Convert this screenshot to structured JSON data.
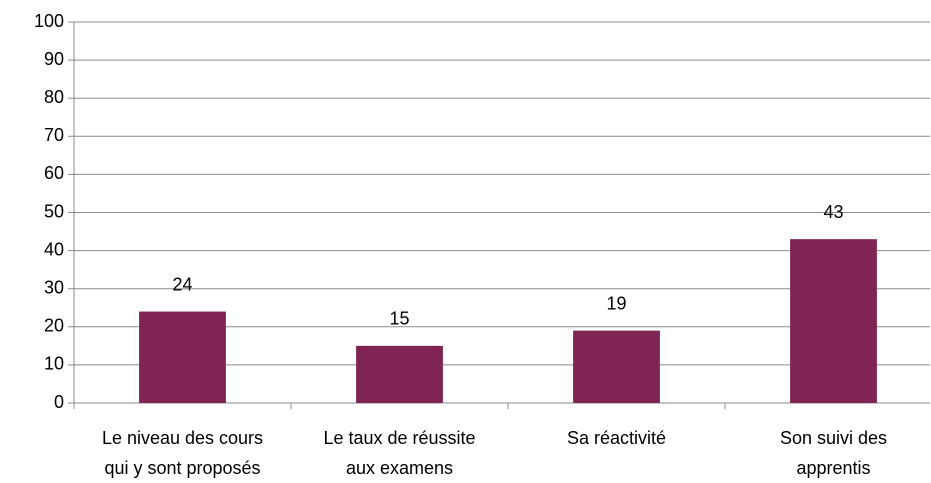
{
  "chart_data": {
    "type": "bar",
    "categories": [
      [
        "Le niveau des cours",
        "qui y sont proposés"
      ],
      [
        "Le taux de réussite",
        "aux examens"
      ],
      [
        "Sa réactivité"
      ],
      [
        "Son suivi des",
        "apprentis"
      ]
    ],
    "values": [
      24,
      15,
      19,
      43
    ],
    "color": "#7f2453",
    "ylim": [
      0,
      100
    ],
    "yticks": [
      0,
      10,
      20,
      30,
      40,
      50,
      60,
      70,
      80,
      90,
      100
    ],
    "grid": true
  }
}
